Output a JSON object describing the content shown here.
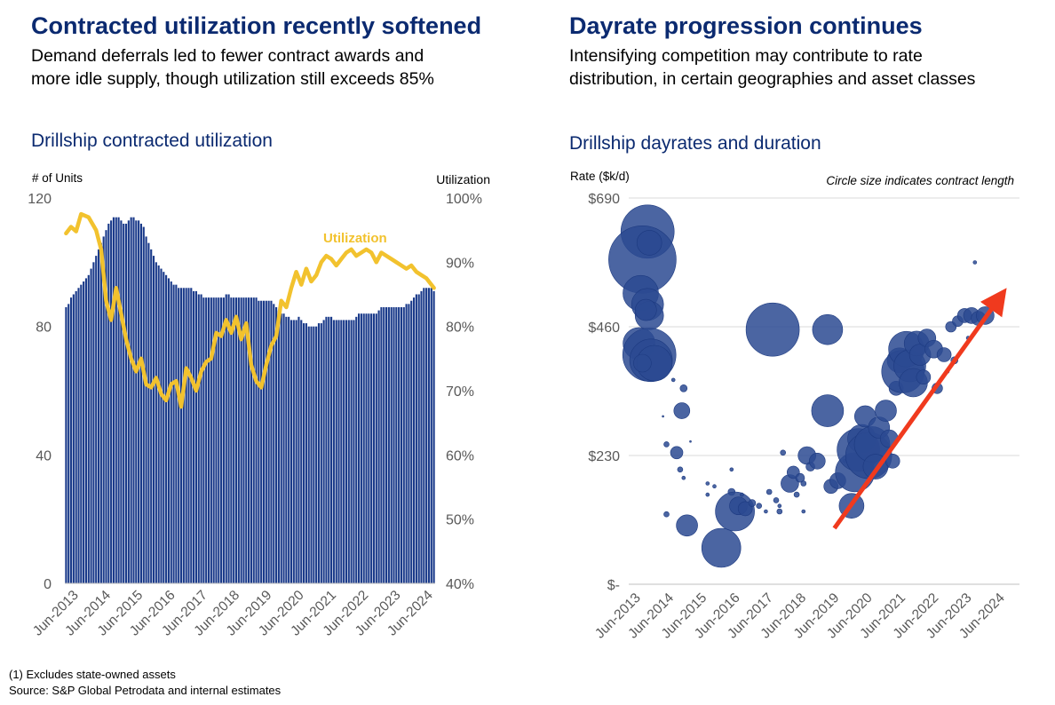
{
  "left": {
    "title": "Contracted utilization recently softened",
    "subtitle_line1": "Demand deferrals led to fewer contract awards and",
    "subtitle_line2": "more idle supply, though utilization still exceeds 85%",
    "chart_title": "Drillship contracted utilization"
  },
  "right": {
    "title": "Dayrate progression continues",
    "subtitle_line1": "Intensifying competition may contribute to rate",
    "subtitle_line2": "distribution, in certain geographies and asset classes",
    "chart_title": "Drillship dayrates and duration"
  },
  "footnotes": {
    "line1": "(1) Excludes state-owned assets",
    "line2": "Source: S&P Global Petrodata and internal estimates"
  },
  "colors": {
    "title_blue": "#0b2a70",
    "bar_fill": "#1a3a8a",
    "utilization_line": "#f2c22e",
    "bubble": "#2b4a92",
    "arrow": "#f03a1e",
    "grid": "#d9d9d9"
  },
  "chart_data": [
    {
      "type": "bar",
      "ylabel": "# of Units",
      "y2label": "Utilization",
      "ylim": [
        0,
        120
      ],
      "y_ticks": [
        "0",
        "40",
        "80",
        "120"
      ],
      "y_tick_values": [
        0,
        40,
        80,
        120
      ],
      "y2lim": [
        40,
        100
      ],
      "y2_ticks": [
        "40%",
        "50%",
        "60%",
        "70%",
        "80%",
        "90%",
        "100%"
      ],
      "y2_tick_values": [
        40,
        50,
        60,
        70,
        80,
        90,
        100
      ],
      "x_ticks": [
        "Jun-2013",
        "Jun-2014",
        "Jun-2015",
        "Jun-2016",
        "Jun-2017",
        "Jun-2018",
        "Jun-2019",
        "Jun-2020",
        "Jun-2021",
        "Jun-2022",
        "Jun-2023",
        "Jun-2024"
      ],
      "grid": false,
      "series": [
        {
          "kind": "bar",
          "values": [
            86,
            87,
            89,
            90,
            91,
            92,
            93,
            94,
            95,
            96,
            98,
            100,
            102,
            104,
            106,
            108,
            110,
            112,
            113,
            114,
            114,
            114,
            113,
            112,
            112,
            113,
            114,
            114,
            113,
            113,
            112,
            111,
            108,
            106,
            104,
            102,
            100,
            99,
            98,
            97,
            96,
            95,
            94,
            93,
            93,
            92,
            92,
            92,
            92,
            92,
            92,
            91,
            91,
            90,
            90,
            89,
            89,
            89,
            89,
            89,
            89,
            89,
            89,
            89,
            90,
            90,
            89,
            89,
            89,
            89,
            89,
            89,
            89,
            89,
            89,
            89,
            89,
            88,
            88,
            88,
            88,
            88,
            88,
            87,
            86,
            85,
            84,
            84,
            83,
            83,
            82,
            82,
            82,
            83,
            82,
            81,
            81,
            80,
            80,
            80,
            80,
            81,
            81,
            82,
            83,
            83,
            83,
            82,
            82,
            82,
            82,
            82,
            82,
            82,
            82,
            82,
            83,
            84,
            84,
            84,
            84,
            84,
            84,
            84,
            84,
            85,
            86,
            86,
            86,
            86,
            86,
            86,
            86,
            86,
            86,
            86,
            87,
            87,
            88,
            89,
            90,
            90,
            91,
            92,
            92,
            92,
            92,
            91
          ]
        },
        {
          "kind": "line",
          "name": "Utilization",
          "x_index": [
            0,
            2,
            4,
            6,
            9,
            12,
            14,
            16,
            18,
            20,
            22,
            24,
            26,
            28,
            30,
            32,
            34,
            36,
            38,
            40,
            42,
            44,
            46,
            48,
            50,
            52,
            54,
            56,
            58,
            60,
            62,
            64,
            66,
            68,
            70,
            72,
            74,
            76,
            78,
            80,
            82,
            84,
            86,
            88,
            90,
            92,
            94,
            96,
            98,
            100,
            102,
            104,
            106,
            108,
            110,
            112,
            114,
            116,
            118,
            120,
            122,
            124,
            126,
            128,
            130,
            132,
            134,
            136,
            138,
            140,
            142,
            144,
            147
          ],
          "values": [
            94.5,
            95.5,
            94.8,
            97.5,
            97.0,
            95.0,
            92.0,
            84.0,
            81.0,
            86.0,
            82.0,
            78.0,
            75.0,
            73.0,
            75.0,
            71.0,
            70.5,
            72.0,
            69.5,
            68.5,
            71.0,
            71.5,
            67.5,
            73.5,
            72.0,
            70.0,
            73.0,
            74.5,
            75.0,
            79.0,
            78.5,
            81.0,
            79.0,
            81.5,
            78.0,
            80.5,
            74.0,
            71.5,
            70.5,
            74.0,
            77.0,
            78.5,
            84.0,
            83.0,
            86.0,
            88.5,
            86.5,
            89.0,
            87.0,
            88.0,
            90.0,
            91.0,
            90.5,
            89.5,
            90.5,
            91.5,
            92.0,
            91.0,
            91.5,
            92.0,
            91.5,
            90.0,
            91.5,
            91.0,
            90.5,
            90.0,
            89.5,
            89.0,
            89.5,
            88.5,
            88.0,
            87.5,
            86.0
          ]
        }
      ]
    },
    {
      "type": "scatter",
      "ylabel": "Rate ($k/d)",
      "annotation": "Circle size indicates contract length",
      "ylim": [
        0,
        690
      ],
      "y_ticks": [
        "$-",
        "$230",
        "$460",
        "$690"
      ],
      "y_tick_values": [
        0,
        230,
        460,
        690
      ],
      "x_ticks": [
        "Jun-2013",
        "Jun-2014",
        "Jun-2015",
        "Jun-2016",
        "Jun-2017",
        "Jun-2018",
        "Jun-2019",
        "Jun-2020",
        "Jun-2021",
        "Jun-2022",
        "Jun-2023",
        "Jun-2024"
      ],
      "grid": true,
      "points": [
        {
          "x": 2014.05,
          "y": 630,
          "size": 30
        },
        {
          "x": 2013.9,
          "y": 580,
          "size": 38
        },
        {
          "x": 2014.1,
          "y": 610,
          "size": 14
        },
        {
          "x": 2013.85,
          "y": 520,
          "size": 20
        },
        {
          "x": 2014.05,
          "y": 500,
          "size": 18
        },
        {
          "x": 2014.1,
          "y": 480,
          "size": 16
        },
        {
          "x": 2014.0,
          "y": 490,
          "size": 12
        },
        {
          "x": 2013.8,
          "y": 430,
          "size": 18
        },
        {
          "x": 2014.1,
          "y": 410,
          "size": 30
        },
        {
          "x": 2014.15,
          "y": 400,
          "size": 24
        },
        {
          "x": 2014.25,
          "y": 395,
          "size": 20
        },
        {
          "x": 2013.9,
          "y": 395,
          "size": 10
        },
        {
          "x": 2015.1,
          "y": 350,
          "size": 4
        },
        {
          "x": 2015.05,
          "y": 310,
          "size": 9
        },
        {
          "x": 2014.8,
          "y": 365,
          "size": 2
        },
        {
          "x": 2014.6,
          "y": 250,
          "size": 3
        },
        {
          "x": 2014.5,
          "y": 300,
          "size": 1
        },
        {
          "x": 2014.9,
          "y": 235,
          "size": 7
        },
        {
          "x": 2015.0,
          "y": 205,
          "size": 3
        },
        {
          "x": 2015.3,
          "y": 255,
          "size": 1
        },
        {
          "x": 2015.1,
          "y": 190,
          "size": 2
        },
        {
          "x": 2014.6,
          "y": 125,
          "size": 3
        },
        {
          "x": 2015.2,
          "y": 105,
          "size": 12
        },
        {
          "x": 2015.8,
          "y": 180,
          "size": 2
        },
        {
          "x": 2015.8,
          "y": 160,
          "size": 2
        },
        {
          "x": 2016.0,
          "y": 175,
          "size": 2
        },
        {
          "x": 2016.2,
          "y": 65,
          "size": 22
        },
        {
          "x": 2016.5,
          "y": 165,
          "size": 4
        },
        {
          "x": 2016.6,
          "y": 130,
          "size": 22
        },
        {
          "x": 2016.7,
          "y": 140,
          "size": 10
        },
        {
          "x": 2016.9,
          "y": 135,
          "size": 8
        },
        {
          "x": 2016.5,
          "y": 205,
          "size": 2
        },
        {
          "x": 2016.8,
          "y": 160,
          "size": 2
        },
        {
          "x": 2017.1,
          "y": 145,
          "size": 4
        },
        {
          "x": 2017.3,
          "y": 140,
          "size": 3
        },
        {
          "x": 2017.5,
          "y": 130,
          "size": 2
        },
        {
          "x": 2017.6,
          "y": 165,
          "size": 3
        },
        {
          "x": 2017.8,
          "y": 150,
          "size": 3
        },
        {
          "x": 2017.9,
          "y": 140,
          "size": 2
        },
        {
          "x": 2018.0,
          "y": 235,
          "size": 3
        },
        {
          "x": 2017.9,
          "y": 130,
          "size": 3
        },
        {
          "x": 2018.2,
          "y": 180,
          "size": 10
        },
        {
          "x": 2018.3,
          "y": 200,
          "size": 7
        },
        {
          "x": 2018.4,
          "y": 160,
          "size": 3
        },
        {
          "x": 2018.5,
          "y": 190,
          "size": 5
        },
        {
          "x": 2018.6,
          "y": 180,
          "size": 3
        },
        {
          "x": 2018.7,
          "y": 230,
          "size": 10
        },
        {
          "x": 2018.8,
          "y": 210,
          "size": 5
        },
        {
          "x": 2019.0,
          "y": 220,
          "size": 9
        },
        {
          "x": 2019.3,
          "y": 310,
          "size": 18
        },
        {
          "x": 2019.4,
          "y": 175,
          "size": 8
        },
        {
          "x": 2018.6,
          "y": 130,
          "size": 2
        },
        {
          "x": 2017.7,
          "y": 455,
          "size": 30
        },
        {
          "x": 2019.3,
          "y": 455,
          "size": 17
        },
        {
          "x": 2019.6,
          "y": 185,
          "size": 9
        },
        {
          "x": 2019.8,
          "y": 220,
          "size": 2
        },
        {
          "x": 2020.0,
          "y": 140,
          "size": 14
        },
        {
          "x": 2020.1,
          "y": 200,
          "size": 22
        },
        {
          "x": 2020.2,
          "y": 240,
          "size": 24
        },
        {
          "x": 2020.3,
          "y": 260,
          "size": 16
        },
        {
          "x": 2020.4,
          "y": 300,
          "size": 12
        },
        {
          "x": 2020.5,
          "y": 230,
          "size": 26
        },
        {
          "x": 2020.6,
          "y": 250,
          "size": 20
        },
        {
          "x": 2020.7,
          "y": 210,
          "size": 14
        },
        {
          "x": 2020.8,
          "y": 280,
          "size": 12
        },
        {
          "x": 2021.0,
          "y": 310,
          "size": 12
        },
        {
          "x": 2021.1,
          "y": 260,
          "size": 10
        },
        {
          "x": 2021.2,
          "y": 220,
          "size": 8
        },
        {
          "x": 2021.3,
          "y": 350,
          "size": 8
        },
        {
          "x": 2021.4,
          "y": 400,
          "size": 14
        },
        {
          "x": 2021.5,
          "y": 380,
          "size": 24
        },
        {
          "x": 2021.6,
          "y": 420,
          "size": 20
        },
        {
          "x": 2021.7,
          "y": 390,
          "size": 18
        },
        {
          "x": 2021.8,
          "y": 360,
          "size": 16
        },
        {
          "x": 2021.9,
          "y": 430,
          "size": 14
        },
        {
          "x": 2022.0,
          "y": 410,
          "size": 12
        },
        {
          "x": 2022.1,
          "y": 370,
          "size": 8
        },
        {
          "x": 2022.2,
          "y": 440,
          "size": 10
        },
        {
          "x": 2022.4,
          "y": 420,
          "size": 10
        },
        {
          "x": 2022.5,
          "y": 350,
          "size": 6
        },
        {
          "x": 2022.7,
          "y": 410,
          "size": 8
        },
        {
          "x": 2022.9,
          "y": 460,
          "size": 6
        },
        {
          "x": 2023.1,
          "y": 470,
          "size": 6
        },
        {
          "x": 2023.3,
          "y": 480,
          "size": 8
        },
        {
          "x": 2023.5,
          "y": 480,
          "size": 9
        },
        {
          "x": 2023.7,
          "y": 475,
          "size": 8
        },
        {
          "x": 2023.9,
          "y": 480,
          "size": 10
        },
        {
          "x": 2023.0,
          "y": 400,
          "size": 4
        },
        {
          "x": 2022.8,
          "y": 380,
          "size": 2
        },
        {
          "x": 2023.6,
          "y": 575,
          "size": 2
        },
        {
          "x": 2023.4,
          "y": 440,
          "size": 2
        }
      ],
      "trend_arrow": {
        "from": {
          "x": 2019.5,
          "y": 100
        },
        "to": {
          "x": 2024.3,
          "y": 510
        }
      }
    }
  ]
}
